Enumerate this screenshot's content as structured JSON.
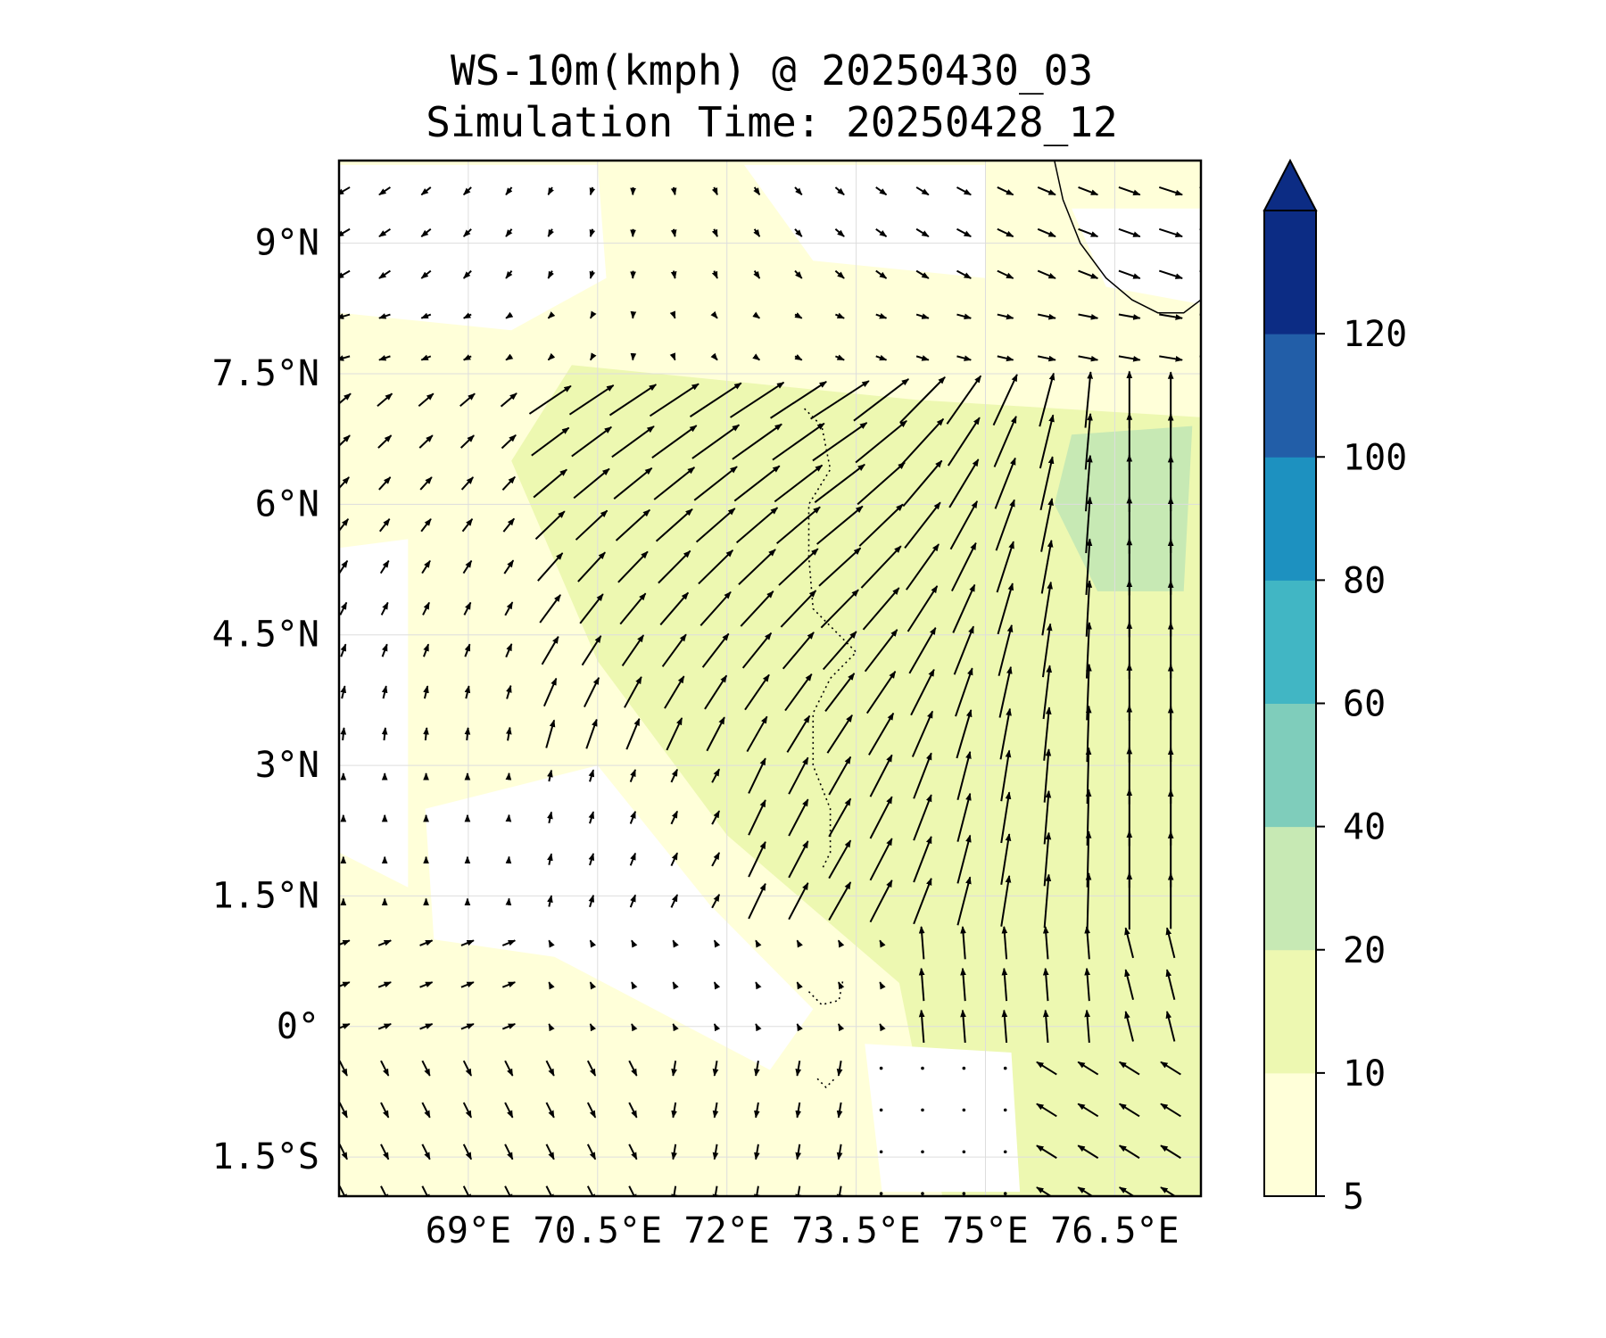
{
  "title": {
    "line1": "WS-10m(kmph) @ 20250430_03",
    "line2": "Simulation Time: 20250428_12"
  },
  "map": {
    "lon_range": [
      67.5,
      77.5
    ],
    "lat_range": [
      -1.95,
      9.95
    ],
    "lon_ticks": [
      {
        "value": 69.0,
        "label": "69°E"
      },
      {
        "value": 70.5,
        "label": "70.5°E"
      },
      {
        "value": 72.0,
        "label": "72°E"
      },
      {
        "value": 73.5,
        "label": "73.5°E"
      },
      {
        "value": 75.0,
        "label": "75°E"
      },
      {
        "value": 76.5,
        "label": "76.5°E"
      }
    ],
    "lat_ticks": [
      {
        "value": 9.0,
        "label": "9°N"
      },
      {
        "value": 7.5,
        "label": "7.5°N"
      },
      {
        "value": 6.0,
        "label": "6°N"
      },
      {
        "value": 4.5,
        "label": "4.5°N"
      },
      {
        "value": 3.0,
        "label": "3°N"
      },
      {
        "value": 1.5,
        "label": "1.5°N"
      },
      {
        "value": 0.0,
        "label": "0°"
      },
      {
        "value": -1.5,
        "label": "1.5°S"
      }
    ],
    "gridlines": true,
    "coastline_india": [
      [
        75.8,
        9.95
      ],
      [
        75.9,
        9.5
      ],
      [
        76.1,
        9.0
      ],
      [
        76.4,
        8.6
      ],
      [
        76.7,
        8.35
      ],
      [
        77.0,
        8.2
      ],
      [
        77.3,
        8.2
      ],
      [
        77.5,
        8.35
      ]
    ],
    "islands": [
      {
        "name": "maldives-atolls",
        "points": [
          [
            72.9,
            7.1
          ],
          [
            73.1,
            6.9
          ],
          [
            73.2,
            6.4
          ],
          [
            72.95,
            6.0
          ],
          [
            72.95,
            5.4
          ],
          [
            73.0,
            4.8
          ],
          [
            73.5,
            4.3
          ],
          [
            73.2,
            4.0
          ],
          [
            73.0,
            3.6
          ],
          [
            73.0,
            3.0
          ],
          [
            73.2,
            2.5
          ],
          [
            73.2,
            2.0
          ],
          [
            73.1,
            1.8
          ]
        ]
      },
      {
        "name": "addu-atoll",
        "points": [
          [
            73.05,
            -0.6
          ],
          [
            73.15,
            -0.7
          ],
          [
            73.25,
            -0.6
          ]
        ]
      },
      {
        "name": "fuvahmulah",
        "points": [
          [
            72.95,
            0.4
          ],
          [
            73.1,
            0.25
          ],
          [
            73.3,
            0.3
          ],
          [
            73.35,
            0.55
          ]
        ]
      }
    ]
  },
  "colorbar": {
    "levels": [
      5,
      10,
      20,
      40,
      60,
      80,
      100,
      120
    ],
    "tick_labels": [
      "5",
      "10",
      "20",
      "40",
      "60",
      "80",
      "100",
      "120"
    ],
    "colors": [
      "#ffffd9",
      "#edf8b1",
      "#c7e9b4",
      "#7fcdbb",
      "#41b6c4",
      "#1d91c0",
      "#225ea8",
      "#0c2c84"
    ],
    "extend": "max"
  },
  "wind_field": {
    "grid_lon_start": 67.5,
    "grid_lon_step": 0.48,
    "grid_lat_start": 9.6,
    "grid_lat_step": -0.48,
    "arrow_scale_kmph": 20
  }
}
